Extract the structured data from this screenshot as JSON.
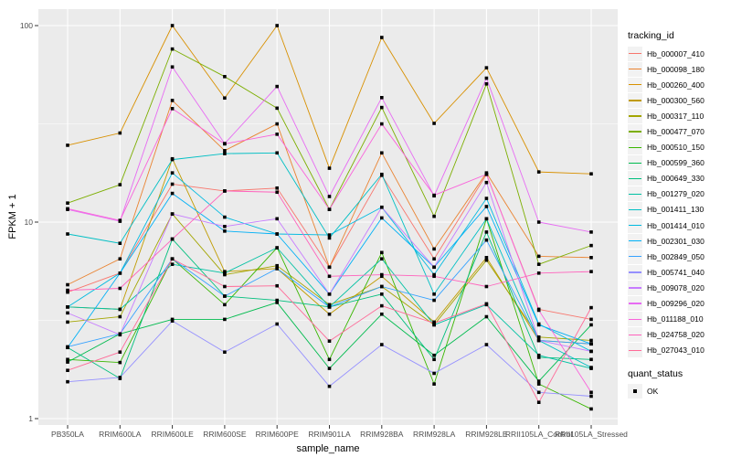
{
  "chart_data": {
    "type": "line",
    "title": "",
    "xlabel": "sample_name",
    "ylabel": "FPKM + 1",
    "y_scale": "log10",
    "ylim": [
      1,
      110
    ],
    "y_ticks": [
      1,
      10,
      100
    ],
    "y_minor": [
      3.162,
      31.62
    ],
    "grid": "on",
    "legend_position": "right",
    "point_shape": "filled-square",
    "categories": [
      "PB350LA",
      "RRIM600LA",
      "RRIM600LE",
      "RRIM600SE",
      "RRIM600PE",
      "RRIM901LA",
      "RRIM928BA",
      "RRIM928LA",
      "RRIM928LE",
      "RRII105LA_Control",
      "RRII105LA_Stressed"
    ],
    "series": [
      {
        "name": "Hb_000007_410",
        "color": "#F8766D",
        "values": [
          4.4,
          5.5,
          15.6,
          14.4,
          14.9,
          5.9,
          17.3,
          6.5,
          17.5,
          3.6,
          3.2
        ]
      },
      {
        "name": "Hb_000098_180",
        "color": "#EA8331",
        "values": [
          4.8,
          6.5,
          41.6,
          23.1,
          31.6,
          5.9,
          22.5,
          7.3,
          17.8,
          6.7,
          6.6
        ]
      },
      {
        "name": "Hb_000260_400",
        "color": "#D89000",
        "values": [
          24.6,
          28.4,
          100,
          42.8,
          100,
          18.8,
          87,
          31.8,
          61,
          18,
          17.6
        ]
      },
      {
        "name": "Hb_000300_560",
        "color": "#C09B00",
        "values": [
          3.7,
          3.6,
          21,
          5.6,
          5.8,
          3.4,
          5.3,
          3.1,
          6.6,
          2.5,
          2.4
        ]
      },
      {
        "name": "Hb_000317_110",
        "color": "#A3A500",
        "values": [
          3.1,
          3.3,
          11,
          5.4,
          6,
          3.8,
          4.7,
          3,
          6.4,
          2.6,
          2.5
        ]
      },
      {
        "name": "Hb_000477_070",
        "color": "#7CAE00",
        "values": [
          12.5,
          15.5,
          76,
          55,
          38,
          11.6,
          38.3,
          10.7,
          50.5,
          6.1,
          7.6
        ]
      },
      {
        "name": "Hb_000510_150",
        "color": "#39B600",
        "values": [
          2,
          1.93,
          6.5,
          3.8,
          7.4,
          2,
          7,
          1.5,
          10.4,
          1.5,
          1.12
        ]
      },
      {
        "name": "Hb_000599_360",
        "color": "#00BB4E",
        "values": [
          1.94,
          2.7,
          3.2,
          3.2,
          3.9,
          1.8,
          3.4,
          2.1,
          3.3,
          1.55,
          3
        ]
      },
      {
        "name": "Hb_000649_330",
        "color": "#00BF7D",
        "values": [
          2.3,
          1.6,
          8.2,
          4.2,
          4,
          3.7,
          4.3,
          2,
          8.9,
          2.05,
          2
        ]
      },
      {
        "name": "Hb_001279_020",
        "color": "#00C1A3",
        "values": [
          3.7,
          3.6,
          6.1,
          5.5,
          7.4,
          3.7,
          6.5,
          3,
          3.8,
          2.1,
          1.8
        ]
      },
      {
        "name": "Hb_001411_130",
        "color": "#00BFC4",
        "values": [
          8.7,
          7.8,
          20.8,
          22.3,
          22.5,
          8.3,
          17.5,
          4.3,
          10.4,
          2.5,
          1.82
        ]
      },
      {
        "name": "Hb_001414_010",
        "color": "#00BAE0",
        "values": [
          3.7,
          5.5,
          17.8,
          10.6,
          8.7,
          8.6,
          11.9,
          5.4,
          13.2,
          3.03,
          2.2
        ]
      },
      {
        "name": "Hb_002301_030",
        "color": "#00B0F6",
        "values": [
          2.3,
          5.5,
          14,
          9,
          8.7,
          4.3,
          10.5,
          5.9,
          12,
          3,
          2.4
        ]
      },
      {
        "name": "Hb_002849_050",
        "color": "#35A2FF",
        "values": [
          2.32,
          2.7,
          6.5,
          4.2,
          5.8,
          3.7,
          4.7,
          4,
          8.1,
          2.5,
          2.4
        ]
      },
      {
        "name": "Hb_005741_040",
        "color": "#9590FF",
        "values": [
          1.54,
          1.62,
          3.14,
          2.18,
          3.03,
          1.46,
          2.38,
          1.7,
          2.38,
          1.36,
          1.3
        ]
      },
      {
        "name": "Hb_009078_020",
        "color": "#C77CFF",
        "values": [
          3.45,
          2.67,
          11,
          9.5,
          10.4,
          4.3,
          11.9,
          5.9,
          15.9,
          2.5,
          2.2
        ]
      },
      {
        "name": "Hb_009296_020",
        "color": "#E76BF3",
        "values": [
          11.6,
          10.1,
          61.6,
          25.1,
          49,
          13.5,
          43,
          13.6,
          54,
          10,
          8.9
        ]
      },
      {
        "name": "Hb_011188_010",
        "color": "#FA62DB",
        "values": [
          11.7,
          10.2,
          37.8,
          25,
          28,
          11.6,
          31.6,
          13.7,
          17.5,
          3.56,
          1.36
        ]
      },
      {
        "name": "Hb_024758_020",
        "color": "#FF62BC",
        "values": [
          4.5,
          4.6,
          8.2,
          14.4,
          14.2,
          5.3,
          5.4,
          5.3,
          4.7,
          5.5,
          5.6
        ]
      },
      {
        "name": "Hb_027043_010",
        "color": "#FF6A98",
        "values": [
          1.76,
          2.18,
          6.5,
          4.7,
          4.74,
          2.48,
          3.75,
          3.06,
          3.84,
          1.21,
          3.67
        ]
      }
    ],
    "legend": {
      "series_title": "tracking_id",
      "shape_title": "quant_status",
      "shape_value": "OK"
    }
  },
  "colors": {
    "panel_bg": "#EBEBEB",
    "grid": "#FFFFFF",
    "axis_text": "#4D4D4D",
    "tick_mark": "#333333",
    "point": "#000000",
    "legend_key_bg": "#F2F2F2"
  }
}
